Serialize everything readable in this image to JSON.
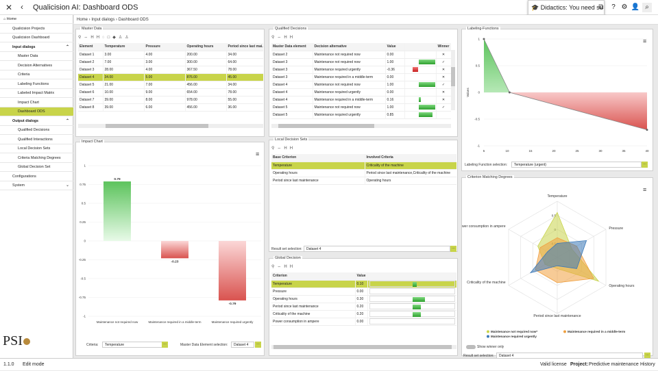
{
  "app": {
    "title": "Qualicision AI: Dashboard ODS",
    "didactics": "Didactics: You need su"
  },
  "sidebar": {
    "items": [
      {
        "label": "Home",
        "level": "top"
      },
      {
        "label": "Qualicision Projects",
        "level": "l1"
      },
      {
        "label": "Qualicision Dashboard",
        "level": "l1"
      },
      {
        "label": "Input dialogs",
        "level": "hdr"
      },
      {
        "label": "Master Data",
        "level": "l2"
      },
      {
        "label": "Decision Alternatives",
        "level": "l2"
      },
      {
        "label": "Criteria",
        "level": "l2"
      },
      {
        "label": "Labeling Functions",
        "level": "l2"
      },
      {
        "label": "Labeled Impact Matrix",
        "level": "l2"
      },
      {
        "label": "Impact Chart",
        "level": "l2"
      },
      {
        "label": "Dashboard ODS",
        "level": "l2",
        "active": true
      },
      {
        "label": "Output dialogs",
        "level": "hdr"
      },
      {
        "label": "Qualified Decisions",
        "level": "l2"
      },
      {
        "label": "Qualified Interactions",
        "level": "l2"
      },
      {
        "label": "Local Decision Sets",
        "level": "l2"
      },
      {
        "label": "Criteria Matching Degrees",
        "level": "l2"
      },
      {
        "label": "Global Decision Set",
        "level": "l2"
      },
      {
        "label": "Configurations",
        "level": "l1"
      },
      {
        "label": "System",
        "level": "l1"
      }
    ],
    "logo": "PSI"
  },
  "breadcrumb": [
    "Home",
    "Input dialogs",
    "Dashboard ODS"
  ],
  "master_data": {
    "title": "Master Data",
    "columns": [
      "Element",
      "Temperature",
      "Pressure",
      "Operating hours",
      "Period since last mai..."
    ],
    "rows": [
      [
        "Dataset 1",
        "3.00",
        "4.00",
        "200.00",
        "34.00"
      ],
      [
        "Dataset 2",
        "7.00",
        "3.00",
        "300.00",
        "64.00"
      ],
      [
        "Dataset 3",
        "28.00",
        "4.00",
        "367.50",
        "78.00"
      ],
      [
        "Dataset 4",
        "34.00",
        "5.00",
        "876.00",
        "45.00"
      ],
      [
        "Dataset 5",
        "21.00",
        "7.00",
        "456.00",
        "34.00"
      ],
      [
        "Dataset 6",
        "10.00",
        "9.00",
        "654.00",
        "78.00"
      ],
      [
        "Dataset 7",
        "39.00",
        "8.00",
        "978.00",
        "55.00"
      ],
      [
        "Dataset 8",
        "39.00",
        "6.00",
        "456.00",
        "36.00"
      ]
    ],
    "selected": 3
  },
  "impact_chart": {
    "title": "Impact Chart",
    "criteria_label": "Criteria:",
    "criteria_value": "Temperature",
    "mde_label": "Master Data Element selection:",
    "mde_value": "Dataset 4",
    "chart_data": {
      "type": "bar",
      "categories": [
        "Maintenance not required now",
        "Maintenance required in a middle-term",
        "Maintenance required urgently"
      ],
      "values": [
        0.79,
        -0.23,
        -0.79
      ],
      "ylim": [
        -1,
        1
      ],
      "yticks": [
        "1",
        "0.75",
        "0.5",
        "0.25",
        "0",
        "-0.25",
        "-0.5",
        "-0.75",
        "-1"
      ],
      "labels": [
        "0.79",
        "-0.23",
        "-0.79"
      ],
      "colors": {
        "positive": "#5cc35c",
        "negative": "#d9534f"
      }
    }
  },
  "qualified_decisions": {
    "title": "Qualified Decisions",
    "columns": [
      "Master Data element",
      "Decision alternative",
      "Value",
      "",
      "Winner"
    ],
    "rows": [
      {
        "c": [
          "Dataset 2",
          "Maintenance not required now",
          "0.00"
        ],
        "v": 0,
        "w": "✕"
      },
      {
        "c": [
          "Dataset 3",
          "Maintenance not required now",
          "1.00"
        ],
        "v": 1,
        "w": "✓"
      },
      {
        "c": [
          "Dataset 3",
          "Maintenance required urgently",
          "-0.36"
        ],
        "v": -0.36,
        "w": "✕"
      },
      {
        "c": [
          "Dataset 3",
          "Maintenance required in a middle-term",
          "0.00"
        ],
        "v": 0,
        "w": "✕"
      },
      {
        "c": [
          "Dataset 4",
          "Maintenance not required now",
          "1.00"
        ],
        "v": 1,
        "w": "✓"
      },
      {
        "c": [
          "Dataset 4",
          "Maintenance required urgently",
          "0.00"
        ],
        "v": 0,
        "w": "✕"
      },
      {
        "c": [
          "Dataset 4",
          "Maintenance required in a middle-term",
          "0.16"
        ],
        "v": 0.16,
        "w": "✕"
      },
      {
        "c": [
          "Dataset 5",
          "Maintenance not required now",
          "1.00"
        ],
        "v": 1,
        "w": "✓"
      },
      {
        "c": [
          "Dataset 5",
          "Maintenance required urgently",
          "0.85"
        ],
        "v": 0.85,
        "w": ""
      }
    ]
  },
  "local_decision_sets": {
    "title": "Local Decision Sets",
    "columns": [
      "Base Criterion",
      "Involved Criteria"
    ],
    "rows": [
      [
        "Temperature",
        "Criticality of the machine"
      ],
      [
        "Operating hours",
        "Period since last maintenance,Criticality of the machine"
      ],
      [
        "Period since last maintenance",
        "Operating hours"
      ]
    ],
    "selected": 0,
    "result_label": "Result set selection:",
    "result_value": "Dataset 4"
  },
  "global_decision": {
    "title": "Global Decision",
    "columns": [
      "Criterion",
      "Value",
      ""
    ],
    "rows": [
      {
        "c": [
          "Temperature",
          "0.10"
        ],
        "v": 0.1
      },
      {
        "c": [
          "Pressure",
          "0.00"
        ],
        "v": 0
      },
      {
        "c": [
          "Operating hours",
          "0.30"
        ],
        "v": 0.3
      },
      {
        "c": [
          "Period since last maintenance",
          "0.20"
        ],
        "v": 0.2
      },
      {
        "c": [
          "Criticality of the machine",
          "0.20"
        ],
        "v": 0.2
      },
      {
        "c": [
          "Power consumption in ampere",
          "0.00"
        ],
        "v": 0
      }
    ],
    "selected": 0
  },
  "labeling_functions": {
    "title": "Labeling-Functions",
    "selection_label": "Labeling Function selection:",
    "selection_value": "Temperature (urgent)",
    "chart_data": {
      "type": "area",
      "ylabel": "Values",
      "xlim": [
        5,
        40
      ],
      "ylim": [
        -1,
        1
      ],
      "xticks": [
        5,
        10,
        15,
        20,
        25,
        30,
        35,
        40
      ],
      "yticks": [
        "1",
        "0.5",
        "0",
        "-0.5",
        "-1"
      ],
      "series": [
        {
          "points": [
            [
              5,
              1
            ],
            [
              5,
              0
            ],
            [
              10.5,
              0
            ],
            [
              40,
              -0.7
            ],
            [
              40,
              0
            ]
          ]
        }
      ],
      "colors": {
        "positive": "#5cc35c",
        "negative": "#d9534f"
      }
    }
  },
  "criteria_matching": {
    "title": "Criterion Matching Degrees",
    "result_label": "Result set selection:",
    "result_value": "Dataset 4",
    "toggle_label": "Show winner only",
    "chart_data": {
      "type": "radar",
      "axes": [
        "Temperature",
        "Pressure",
        "Operating hours",
        "Period since last maintenance",
        "Criticality of the machine",
        "Power consumption in ampere"
      ],
      "ticks": [
        "0.5",
        "0",
        "-0.5"
      ],
      "series": [
        {
          "name": "Maintenance not required now*",
          "color": "#c8d44a",
          "values": [
            0.6,
            -0.4,
            0.7,
            -0.6,
            -0.5,
            -0.2
          ]
        },
        {
          "name": "Maintenance required in a middle-term",
          "color": "#f0a040",
          "values": [
            -0.3,
            -0.2,
            0.5,
            -0.1,
            -0.1,
            -0.3
          ]
        },
        {
          "name": "Maintenance required urgently",
          "color": "#3a78b8",
          "values": [
            -0.5,
            0.2,
            -0.2,
            -0.7,
            0.1,
            -0.6
          ]
        }
      ]
    }
  },
  "status": {
    "version": "1.1.0",
    "mode": "Edit mode",
    "license": "Valid license",
    "project_label": "Project:",
    "project": "Predictive maintenance",
    "history": "History"
  }
}
